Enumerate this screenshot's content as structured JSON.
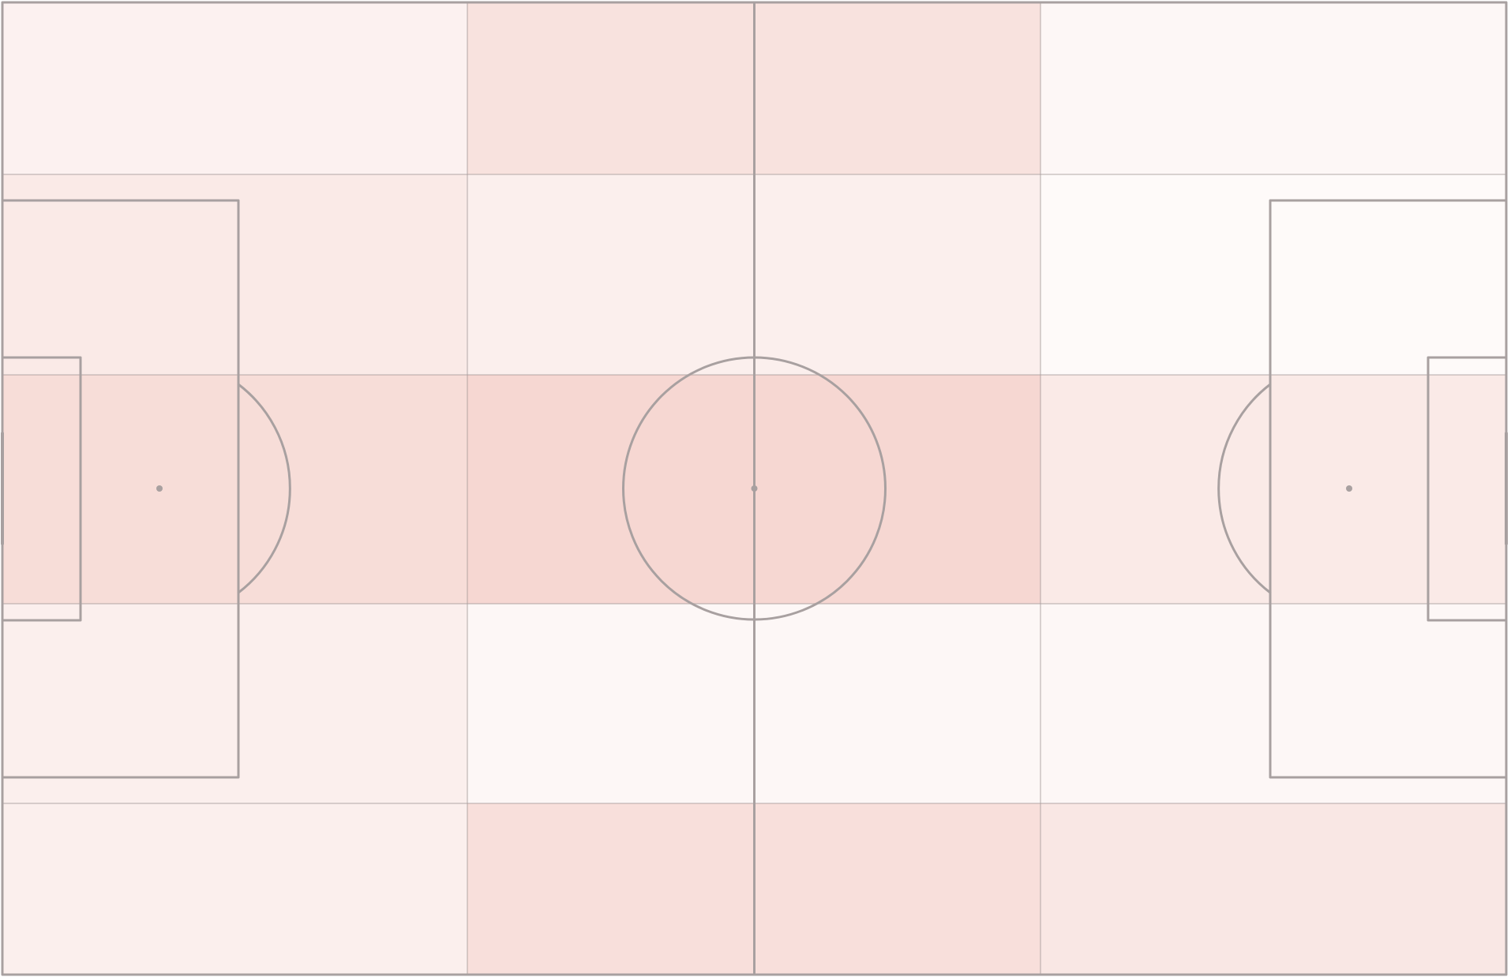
{
  "chart_data": {
    "type": "heatmap",
    "title": "",
    "xlabel": "",
    "ylabel": "",
    "grid": true,
    "legend": "none",
    "x_bins": [
      "1",
      "2",
      "3",
      "4"
    ],
    "y_bins": [
      "1",
      "2",
      "3",
      "4",
      "5"
    ],
    "values": [
      [
        0.1,
        0.22,
        0.22,
        0.06
      ],
      [
        0.16,
        0.12,
        0.12,
        0.04
      ],
      [
        0.26,
        0.3,
        0.3,
        0.16
      ],
      [
        0.12,
        0.06,
        0.06,
        0.06
      ],
      [
        0.12,
        0.24,
        0.24,
        0.18
      ]
    ],
    "colors": {
      "heat": "#e07a6a",
      "lines": "#a8a0a0",
      "background": "#ffffff"
    }
  }
}
